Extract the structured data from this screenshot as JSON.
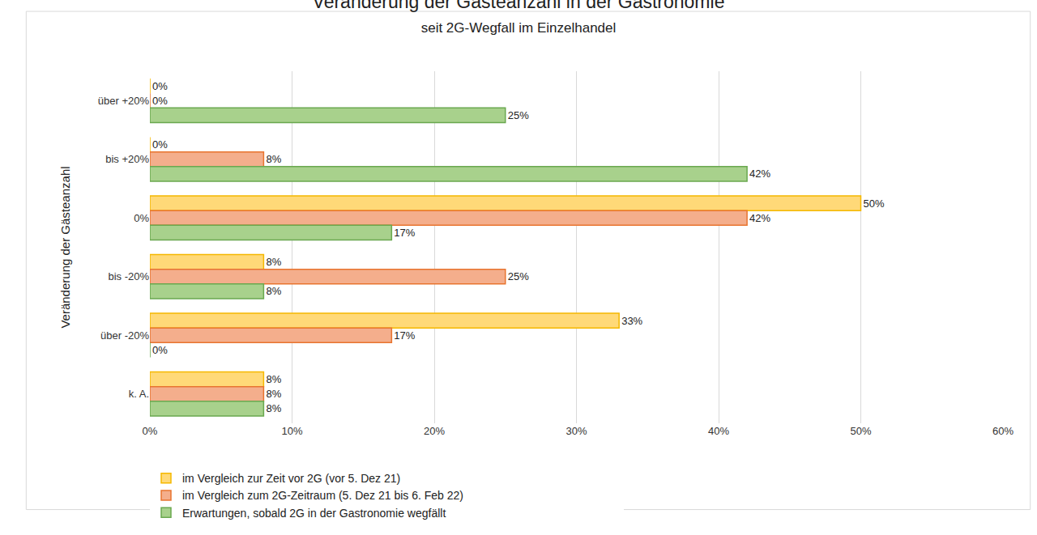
{
  "chart_data": {
    "type": "bar",
    "orientation": "horizontal",
    "title": "Veränderung der Gästeanzahl in der Gastronomie",
    "subtitle": "seit 2G-Wegfall im Einzelhandel",
    "y_label": "Veränderung der Gästeanzahl",
    "categories": [
      "über +20%",
      "bis +20%",
      "0%",
      "bis -20%",
      "über -20%",
      "k. A."
    ],
    "series": [
      {
        "name": "im Vergleich zur Zeit vor 2G (vor 5. Dez 21)",
        "color": "#ffd978",
        "values": [
          0,
          0,
          50,
          8,
          33,
          8
        ],
        "value_labels": [
          "0%",
          "0%",
          "50%",
          "8%",
          "33%",
          "8%"
        ]
      },
      {
        "name": "im Vergleich zum 2G-Zeitraum (5. Dez 21 bis 6. Feb 22)",
        "color": "#f4ae8c",
        "values": [
          0,
          8,
          42,
          25,
          17,
          8
        ],
        "value_labels": [
          "0%",
          "8%",
          "42%",
          "25%",
          "17%",
          "8%"
        ]
      },
      {
        "name": "Erwartungen, sobald 2G in der Gastronomie wegfällt",
        "color": "#a8d18c",
        "values": [
          25,
          42,
          17,
          8,
          0,
          8
        ],
        "value_labels": [
          "25%",
          "42%",
          "17%",
          "8%",
          "0%",
          "8%"
        ]
      }
    ],
    "xlim": [
      0,
      60
    ],
    "xticks": [
      {
        "value": 0,
        "label": "0%"
      },
      {
        "value": 10,
        "label": "10%"
      },
      {
        "value": 20,
        "label": "20%"
      },
      {
        "value": 30,
        "label": "30%"
      },
      {
        "value": 40,
        "label": "40%"
      },
      {
        "value": 50,
        "label": "50%"
      },
      {
        "value": 60,
        "label": "60%"
      }
    ],
    "grid": true,
    "data_labels": true,
    "legend": "bottom"
  }
}
